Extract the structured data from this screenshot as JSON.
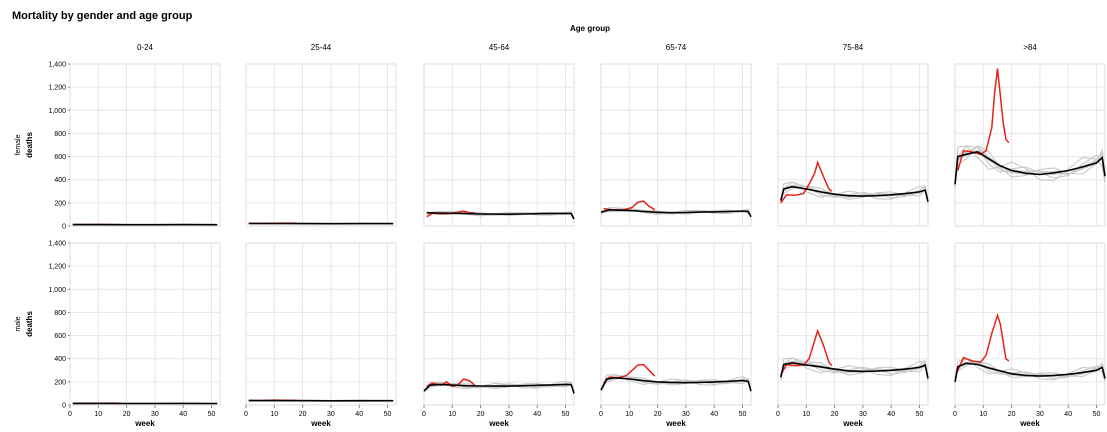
{
  "chart_data": {
    "type": "line",
    "title": "Mortality by gender and age group",
    "column_title": "Age group",
    "columns": [
      "0-24",
      "25-44",
      "45-64",
      "65-74",
      "75-84",
      ">84"
    ],
    "rows": [
      "female",
      "male"
    ],
    "xlabel": "week",
    "ylabel": "deaths",
    "xlim": [
      0,
      53
    ],
    "ylim": [
      0,
      1400
    ],
    "xticks": [
      0,
      10,
      20,
      30,
      40,
      50
    ],
    "yticks": [
      0,
      200,
      400,
      600,
      800,
      1000,
      1200,
      1400
    ],
    "ytick_labels": [
      "0",
      "200",
      "400",
      "600",
      "800",
      "1,000",
      "1,200",
      "1,400"
    ],
    "grid": true,
    "series_colors": {
      "past_years": "#c8c8c8",
      "average": "#000000",
      "current_year": "#e8221b"
    },
    "panels": {
      "female": {
        "0-24": {
          "average": [
            [
              1,
              12
            ],
            [
              10,
              12
            ],
            [
              20,
              11
            ],
            [
              30,
              11
            ],
            [
              40,
              12
            ],
            [
              52,
              11
            ]
          ],
          "current_year": [
            [
              1,
              13
            ],
            [
              5,
              12
            ],
            [
              10,
              13
            ],
            [
              15,
              12
            ],
            [
              18,
              12
            ]
          ]
        },
        "25-44": {
          "average": [
            [
              1,
              22
            ],
            [
              10,
              22
            ],
            [
              20,
              21
            ],
            [
              30,
              20
            ],
            [
              40,
              21
            ],
            [
              52,
              21
            ]
          ],
          "current_year": [
            [
              1,
              24
            ],
            [
              5,
              22
            ],
            [
              10,
              23
            ],
            [
              15,
              25
            ],
            [
              18,
              23
            ]
          ]
        },
        "45-64": {
          "average": [
            [
              1,
              115
            ],
            [
              5,
              112
            ],
            [
              10,
              110
            ],
            [
              15,
              107
            ],
            [
              20,
              104
            ],
            [
              25,
              103
            ],
            [
              30,
              102
            ],
            [
              35,
              104
            ],
            [
              40,
              106
            ],
            [
              45,
              108
            ],
            [
              50,
              110
            ],
            [
              52,
              108
            ],
            [
              53,
              60
            ]
          ],
          "current_year": [
            [
              1,
              80
            ],
            [
              3,
              110
            ],
            [
              6,
              105
            ],
            [
              9,
              108
            ],
            [
              12,
              120
            ],
            [
              14,
              130
            ],
            [
              16,
              115
            ],
            [
              18,
              112
            ]
          ]
        },
        "65-74": {
          "average": [
            [
              0,
              120
            ],
            [
              3,
              140
            ],
            [
              10,
              135
            ],
            [
              15,
              125
            ],
            [
              20,
              118
            ],
            [
              25,
              115
            ],
            [
              30,
              117
            ],
            [
              35,
              120
            ],
            [
              40,
              122
            ],
            [
              45,
              125
            ],
            [
              50,
              130
            ],
            [
              52,
              125
            ],
            [
              53,
              80
            ]
          ],
          "current_year": [
            [
              1,
              150
            ],
            [
              4,
              140
            ],
            [
              8,
              138
            ],
            [
              11,
              160
            ],
            [
              13,
              205
            ],
            [
              15,
              215
            ],
            [
              17,
              170
            ],
            [
              19,
              140
            ]
          ]
        },
        "75-84": {
          "average": [
            [
              1,
              220
            ],
            [
              2,
              320
            ],
            [
              5,
              340
            ],
            [
              10,
              320
            ],
            [
              15,
              295
            ],
            [
              20,
              275
            ],
            [
              25,
              262
            ],
            [
              30,
              258
            ],
            [
              35,
              262
            ],
            [
              40,
              270
            ],
            [
              45,
              280
            ],
            [
              50,
              295
            ],
            [
              52,
              310
            ],
            [
              53,
              210
            ]
          ],
          "current_year": [
            [
              1,
              200
            ],
            [
              3,
              270
            ],
            [
              6,
              265
            ],
            [
              9,
              280
            ],
            [
              11,
              360
            ],
            [
              13,
              460
            ],
            [
              14,
              550
            ],
            [
              16,
              430
            ],
            [
              18,
              320
            ],
            [
              19,
              300
            ]
          ]
        },
        ">84": {
          "average": [
            [
              0,
              360
            ],
            [
              1,
              600
            ],
            [
              4,
              620
            ],
            [
              8,
              640
            ],
            [
              12,
              580
            ],
            [
              16,
              520
            ],
            [
              20,
              480
            ],
            [
              25,
              455
            ],
            [
              30,
              445
            ],
            [
              35,
              460
            ],
            [
              40,
              480
            ],
            [
              45,
              510
            ],
            [
              50,
              545
            ],
            [
              52,
              590
            ],
            [
              53,
              430
            ]
          ],
          "current_year": [
            [
              1,
              480
            ],
            [
              3,
              650
            ],
            [
              6,
              640
            ],
            [
              9,
              620
            ],
            [
              11,
              650
            ],
            [
              13,
              850
            ],
            [
              14,
              1150
            ],
            [
              15,
              1360
            ],
            [
              17,
              900
            ],
            [
              18,
              750
            ],
            [
              19,
              720
            ]
          ]
        }
      },
      "male": {
        "0-24": {
          "average": [
            [
              1,
              14
            ],
            [
              10,
              14
            ],
            [
              20,
              13
            ],
            [
              30,
              13
            ],
            [
              40,
              14
            ],
            [
              52,
              13
            ]
          ],
          "current_year": [
            [
              1,
              15
            ],
            [
              5,
              14
            ],
            [
              10,
              15
            ],
            [
              15,
              16
            ],
            [
              18,
              14
            ]
          ]
        },
        "25-44": {
          "average": [
            [
              1,
              38
            ],
            [
              10,
              38
            ],
            [
              20,
              37
            ],
            [
              30,
              36
            ],
            [
              40,
              37
            ],
            [
              52,
              37
            ]
          ],
          "current_year": [
            [
              1,
              40
            ],
            [
              5,
              38
            ],
            [
              10,
              42
            ],
            [
              15,
              40
            ],
            [
              18,
              39
            ]
          ]
        },
        "45-64": {
          "average": [
            [
              0,
              120
            ],
            [
              2,
              170
            ],
            [
              5,
              178
            ],
            [
              10,
              172
            ],
            [
              15,
              166
            ],
            [
              20,
              164
            ],
            [
              25,
              163
            ],
            [
              30,
              163
            ],
            [
              35,
              166
            ],
            [
              40,
              170
            ],
            [
              45,
              174
            ],
            [
              50,
              178
            ],
            [
              52,
              176
            ],
            [
              53,
              100
            ]
          ],
          "current_year": [
            [
              1,
              160
            ],
            [
              3,
              190
            ],
            [
              6,
              170
            ],
            [
              8,
              200
            ],
            [
              10,
              160
            ],
            [
              12,
              175
            ],
            [
              14,
              225
            ],
            [
              16,
              210
            ],
            [
              18,
              170
            ]
          ]
        },
        "65-74": {
          "average": [
            [
              0,
              130
            ],
            [
              2,
              225
            ],
            [
              5,
              235
            ],
            [
              10,
              225
            ],
            [
              15,
              210
            ],
            [
              20,
              200
            ],
            [
              25,
              195
            ],
            [
              30,
              193
            ],
            [
              35,
              195
            ],
            [
              40,
              200
            ],
            [
              45,
              205
            ],
            [
              50,
              212
            ],
            [
              52,
              205
            ],
            [
              53,
              120
            ]
          ],
          "current_year": [
            [
              1,
              190
            ],
            [
              3,
              240
            ],
            [
              6,
              235
            ],
            [
              9,
              255
            ],
            [
              11,
              300
            ],
            [
              13,
              345
            ],
            [
              15,
              350
            ],
            [
              17,
              300
            ],
            [
              19,
              250
            ]
          ]
        },
        "75-84": {
          "average": [
            [
              1,
              240
            ],
            [
              2,
              350
            ],
            [
              5,
              365
            ],
            [
              10,
              345
            ],
            [
              15,
              330
            ],
            [
              20,
              310
            ],
            [
              25,
              295
            ],
            [
              30,
              290
            ],
            [
              35,
              293
            ],
            [
              40,
              300
            ],
            [
              45,
              310
            ],
            [
              50,
              325
            ],
            [
              52,
              345
            ],
            [
              53,
              230
            ]
          ],
          "current_year": [
            [
              1,
              260
            ],
            [
              3,
              350
            ],
            [
              6,
              340
            ],
            [
              9,
              345
            ],
            [
              11,
              400
            ],
            [
              13,
              560
            ],
            [
              14,
              640
            ],
            [
              16,
              520
            ],
            [
              18,
              370
            ],
            [
              19,
              340
            ]
          ]
        },
        ">84": {
          "average": [
            [
              0,
              200
            ],
            [
              1,
              330
            ],
            [
              4,
              360
            ],
            [
              8,
              350
            ],
            [
              12,
              320
            ],
            [
              16,
              295
            ],
            [
              20,
              270
            ],
            [
              25,
              255
            ],
            [
              30,
              250
            ],
            [
              35,
              255
            ],
            [
              40,
              265
            ],
            [
              45,
              280
            ],
            [
              50,
              300
            ],
            [
              52,
              325
            ],
            [
              53,
              230
            ]
          ],
          "current_year": [
            [
              1,
              300
            ],
            [
              3,
              410
            ],
            [
              6,
              380
            ],
            [
              9,
              370
            ],
            [
              11,
              430
            ],
            [
              13,
              620
            ],
            [
              15,
              775
            ],
            [
              16,
              700
            ],
            [
              18,
              400
            ],
            [
              19,
              380
            ]
          ]
        }
      }
    }
  }
}
